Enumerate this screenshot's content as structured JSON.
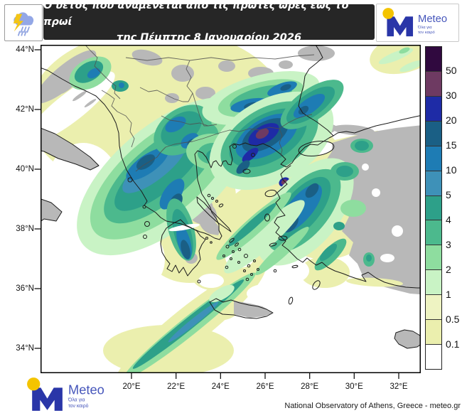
{
  "banner": {
    "line1": "Ο υετός που αναμένεται από τις πρώτες ώρες έως το πρωί",
    "line2": "της Πέμπτης 8 Ιανουαρίου 2026"
  },
  "brand": {
    "name": "Meteo",
    "tagline1": "Όλα για",
    "tagline2": "τον καιρό"
  },
  "axes": {
    "lat": [
      "44°N",
      "42°N",
      "40°N",
      "38°N",
      "36°N",
      "34°N"
    ],
    "lon": [
      "20°E",
      "22°E",
      "24°E",
      "26°E",
      "28°E",
      "30°E",
      "32°E"
    ]
  },
  "colorbar": {
    "labels": [
      "50",
      "30",
      "20",
      "15",
      "10",
      "5",
      "4",
      "3",
      "2",
      "1",
      "0.5",
      "0.1"
    ],
    "colors": [
      "#30093f",
      "#6e3a62",
      "#1e2ba6",
      "#1a5f85",
      "#1e7cb4",
      "#3e91b8",
      "#2da089",
      "#4cb98d",
      "#8edd9f",
      "#c9f3c5",
      "#eef3c2",
      "#ebefae",
      "#ffffff"
    ]
  },
  "theme": {
    "banner_bg": "#262626",
    "land": "#b8b8b8",
    "coast": "#1c1c1c",
    "border": "#4f4f4f",
    "brand_blue": "#2a36a8",
    "brand_text": "#4656bb",
    "brand_yellow": "#f4c400"
  },
  "footer": {
    "attribution": "National Observatory of Athens, Greece - meteo.gr"
  },
  "chart_data": {
    "type": "heatmap",
    "description": "Forecast precipitation map of Greece and surrounding region",
    "legend_levels": [
      0.1,
      0.5,
      1,
      2,
      3,
      4,
      5,
      10,
      15,
      20,
      30,
      50
    ],
    "lat_ticks_deg_n": [
      44,
      42,
      40,
      38,
      36,
      34
    ],
    "lon_ticks_deg_e": [
      20,
      22,
      24,
      26,
      28,
      30,
      32
    ],
    "max_area": "dark-blue/purple core (>50) over Thrace / northern Aegean"
  }
}
